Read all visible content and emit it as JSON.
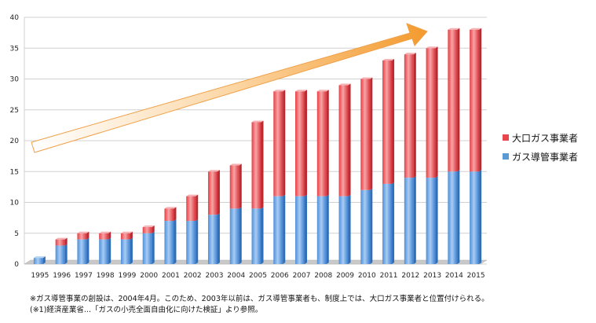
{
  "chart_data": {
    "type": "bar",
    "stacked": true,
    "categories": [
      "1995",
      "1996",
      "1997",
      "1998",
      "1999",
      "2000",
      "2001",
      "2002",
      "2003",
      "2004",
      "2005",
      "2006",
      "2007",
      "2008",
      "2009",
      "2010",
      "2011",
      "2012",
      "2013",
      "2014",
      "2015"
    ],
    "series": [
      {
        "name": "ガス導管事業者",
        "color": "#5b9bd5",
        "values": [
          1,
          3,
          4,
          4,
          4,
          5,
          7,
          7,
          8,
          9,
          9,
          11,
          11,
          11,
          11,
          12,
          13,
          14,
          14,
          15,
          15
        ]
      },
      {
        "name": "大口ガス事業者",
        "color": "#e8474d",
        "values": [
          0,
          1,
          1,
          1,
          1,
          1,
          2,
          4,
          7,
          7,
          14,
          17,
          17,
          17,
          18,
          18,
          20,
          20,
          21,
          23,
          23
        ]
      }
    ],
    "ylim": [
      0,
      40
    ],
    "yticks": [
      0,
      5,
      10,
      15,
      20,
      25,
      30,
      35,
      40
    ],
    "grid": true,
    "legend_position": "right",
    "annotation": "upward trend arrow"
  },
  "notes": [
    "※ガス導管事業の創設は、2004年4月。このため、2003年以前は、ガス導管事業者も、制度上では、大口ガス事業者と位置付けられる。",
    "(※1)経済産業省...「ガスの小売全面自由化に向けた検証」より参照。"
  ]
}
